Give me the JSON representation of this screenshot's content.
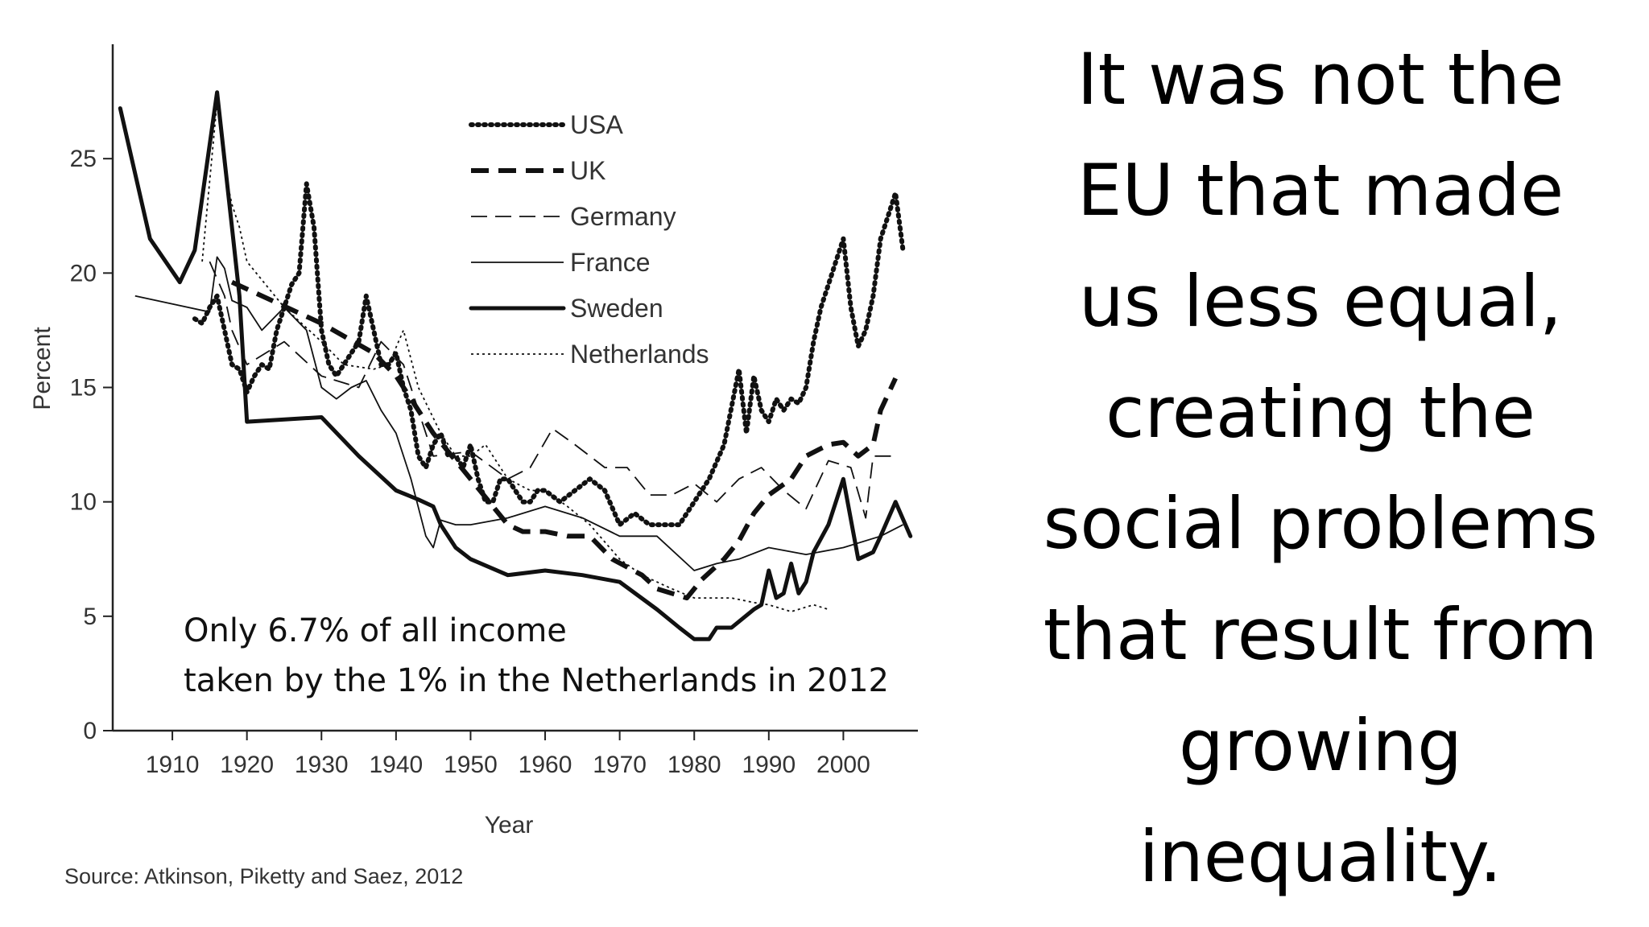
{
  "slide_text": [
    "It was not the",
    "EU that made",
    "us less equal,",
    "creating the",
    "social problems",
    "that result from",
    "growing",
    "inequality."
  ],
  "annotation": [
    "Only 6.7% of all income",
    "taken by the 1% in the Netherlands in 2012"
  ],
  "source": "Source: Atkinson, Piketty and Saez, 2012",
  "chart_data": {
    "type": "line",
    "xlabel": "Year",
    "ylabel": "Percent",
    "xlim": [
      1902,
      2010
    ],
    "ylim": [
      0,
      30
    ],
    "x_ticks": [
      1910,
      1920,
      1930,
      1940,
      1950,
      1960,
      1970,
      1980,
      1990,
      2000
    ],
    "y_ticks": [
      0,
      5,
      10,
      15,
      20,
      25
    ],
    "legend_position": "top-center",
    "series": [
      {
        "name": "USA",
        "style": "dotted-heavy",
        "points": [
          [
            1913,
            18
          ],
          [
            1914,
            17.8
          ],
          [
            1915,
            18.5
          ],
          [
            1916,
            19
          ],
          [
            1917,
            17.5
          ],
          [
            1918,
            16
          ],
          [
            1919,
            15.8
          ],
          [
            1920,
            14.8
          ],
          [
            1921,
            15.5
          ],
          [
            1922,
            16
          ],
          [
            1923,
            15.8
          ],
          [
            1924,
            17.5
          ],
          [
            1925,
            18.5
          ],
          [
            1926,
            19.5
          ],
          [
            1927,
            20
          ],
          [
            1928,
            23.9
          ],
          [
            1929,
            22
          ],
          [
            1930,
            17.5
          ],
          [
            1931,
            16
          ],
          [
            1932,
            15.5
          ],
          [
            1933,
            16
          ],
          [
            1934,
            16.5
          ],
          [
            1935,
            17
          ],
          [
            1936,
            19
          ],
          [
            1937,
            17.5
          ],
          [
            1938,
            16
          ],
          [
            1939,
            16
          ],
          [
            1940,
            16.5
          ],
          [
            1941,
            15
          ],
          [
            1942,
            14
          ],
          [
            1943,
            12
          ],
          [
            1944,
            11.5
          ],
          [
            1945,
            12.5
          ],
          [
            1946,
            13
          ],
          [
            1947,
            12
          ],
          [
            1948,
            12
          ],
          [
            1949,
            11.5
          ],
          [
            1950,
            12.5
          ],
          [
            1951,
            11
          ],
          [
            1952,
            10
          ],
          [
            1953,
            10
          ],
          [
            1954,
            11
          ],
          [
            1955,
            11
          ],
          [
            1956,
            10.5
          ],
          [
            1957,
            10
          ],
          [
            1958,
            10
          ],
          [
            1959,
            10.5
          ],
          [
            1960,
            10.5
          ],
          [
            1962,
            10
          ],
          [
            1964,
            10.5
          ],
          [
            1966,
            11
          ],
          [
            1968,
            10.5
          ],
          [
            1970,
            9
          ],
          [
            1972,
            9.5
          ],
          [
            1974,
            9
          ],
          [
            1976,
            9
          ],
          [
            1978,
            9
          ],
          [
            1980,
            10
          ],
          [
            1982,
            11
          ],
          [
            1984,
            12.5
          ],
          [
            1986,
            15.8
          ],
          [
            1987,
            13
          ],
          [
            1988,
            15.5
          ],
          [
            1989,
            14
          ],
          [
            1990,
            13.5
          ],
          [
            1991,
            14.5
          ],
          [
            1992,
            14
          ],
          [
            1993,
            14.5
          ],
          [
            1994,
            14.3
          ],
          [
            1995,
            15
          ],
          [
            1996,
            17
          ],
          [
            1997,
            18.5
          ],
          [
            1998,
            19.5
          ],
          [
            1999,
            20.5
          ],
          [
            2000,
            21.5
          ],
          [
            2001,
            18.5
          ],
          [
            2002,
            16.8
          ],
          [
            2003,
            17.5
          ],
          [
            2004,
            19
          ],
          [
            2005,
            21.5
          ],
          [
            2006,
            22.5
          ],
          [
            2007,
            23.5
          ],
          [
            2008,
            21
          ]
        ]
      },
      {
        "name": "UK",
        "style": "dashed-heavy",
        "points": [
          [
            1918,
            19.6
          ],
          [
            1920,
            19.3
          ],
          [
            1930,
            17.8
          ],
          [
            1937,
            16.5
          ],
          [
            1940,
            15.5
          ],
          [
            1945,
            13
          ],
          [
            1950,
            11
          ],
          [
            1955,
            9
          ],
          [
            1957,
            8.7
          ],
          [
            1960,
            8.7
          ],
          [
            1963,
            8.5
          ],
          [
            1966,
            8.5
          ],
          [
            1969,
            7.5
          ],
          [
            1973,
            6.8
          ],
          [
            1975,
            6.2
          ],
          [
            1979,
            5.8
          ],
          [
            1981,
            6.6
          ],
          [
            1984,
            7.5
          ],
          [
            1986,
            8.3
          ],
          [
            1988,
            9.5
          ],
          [
            1990,
            10.3
          ],
          [
            1993,
            11
          ],
          [
            1995,
            12
          ],
          [
            1998,
            12.5
          ],
          [
            2000,
            12.6
          ],
          [
            2002,
            12
          ],
          [
            2004,
            12.5
          ],
          [
            2005,
            14
          ],
          [
            2007,
            15.4
          ]
        ]
      },
      {
        "name": "Germany",
        "style": "dashed-light",
        "points": [
          [
            1915,
            20.5
          ],
          [
            1917,
            19
          ],
          [
            1918,
            17.5
          ],
          [
            1920,
            16
          ],
          [
            1925,
            17
          ],
          [
            1930,
            15.5
          ],
          [
            1935,
            15
          ],
          [
            1938,
            17
          ],
          [
            1941,
            16
          ],
          [
            1945,
            12
          ],
          [
            1950,
            12.2
          ],
          [
            1955,
            11
          ],
          [
            1958,
            11.5
          ],
          [
            1961,
            13.2
          ],
          [
            1964,
            12.5
          ],
          [
            1968,
            11.5
          ],
          [
            1971,
            11.5
          ],
          [
            1974,
            10.3
          ],
          [
            1977,
            10.3
          ],
          [
            1980,
            10.8
          ],
          [
            1983,
            10
          ],
          [
            1986,
            11
          ],
          [
            1989,
            11.5
          ],
          [
            1992,
            10.5
          ],
          [
            1995,
            9.7
          ],
          [
            1998,
            11.8
          ],
          [
            2001,
            11.5
          ],
          [
            2003,
            9.3
          ],
          [
            2004,
            12
          ],
          [
            2007,
            12
          ]
        ]
      },
      {
        "name": "France",
        "style": "solid-light",
        "points": [
          [
            1905,
            19
          ],
          [
            1915,
            18.3
          ],
          [
            1916,
            20.7
          ],
          [
            1917,
            20.2
          ],
          [
            1918,
            18.8
          ],
          [
            1920,
            18.5
          ],
          [
            1922,
            17.5
          ],
          [
            1925,
            18.5
          ],
          [
            1928,
            17.5
          ],
          [
            1930,
            15
          ],
          [
            1932,
            14.5
          ],
          [
            1934,
            15
          ],
          [
            1936,
            15.3
          ],
          [
            1938,
            14
          ],
          [
            1940,
            13
          ],
          [
            1942,
            11
          ],
          [
            1944,
            8.5
          ],
          [
            1945,
            8
          ],
          [
            1946,
            9.2
          ],
          [
            1948,
            9
          ],
          [
            1950,
            9
          ],
          [
            1955,
            9.3
          ],
          [
            1960,
            9.8
          ],
          [
            1965,
            9.3
          ],
          [
            1970,
            8.5
          ],
          [
            1975,
            8.5
          ],
          [
            1980,
            7
          ],
          [
            1983,
            7.3
          ],
          [
            1986,
            7.5
          ],
          [
            1990,
            8
          ],
          [
            1995,
            7.7
          ],
          [
            2000,
            8
          ],
          [
            2005,
            8.5
          ],
          [
            2008,
            9
          ]
        ]
      },
      {
        "name": "Sweden",
        "style": "solid-heavy",
        "points": [
          [
            1903,
            27.2
          ],
          [
            1907,
            21.5
          ],
          [
            1911,
            19.6
          ],
          [
            1913,
            21
          ],
          [
            1916,
            27.9
          ],
          [
            1918,
            22
          ],
          [
            1919,
            19
          ],
          [
            1920,
            13.5
          ],
          [
            1930,
            13.7
          ],
          [
            1935,
            12
          ],
          [
            1940,
            10.5
          ],
          [
            1943,
            10.1
          ],
          [
            1945,
            9.8
          ],
          [
            1946,
            9
          ],
          [
            1948,
            8
          ],
          [
            1950,
            7.5
          ],
          [
            1955,
            6.8
          ],
          [
            1960,
            7
          ],
          [
            1965,
            6.8
          ],
          [
            1970,
            6.5
          ],
          [
            1975,
            5.3
          ],
          [
            1978,
            4.5
          ],
          [
            1980,
            4
          ],
          [
            1982,
            4
          ],
          [
            1983,
            4.5
          ],
          [
            1985,
            4.5
          ],
          [
            1988,
            5.3
          ],
          [
            1989,
            5.5
          ],
          [
            1990,
            7
          ],
          [
            1991,
            5.8
          ],
          [
            1992,
            6
          ],
          [
            1993,
            7.3
          ],
          [
            1994,
            6
          ],
          [
            1995,
            6.5
          ],
          [
            1996,
            7.8
          ],
          [
            1998,
            9
          ],
          [
            2000,
            11
          ],
          [
            2002,
            7.5
          ],
          [
            2004,
            7.8
          ],
          [
            2005,
            8.5
          ],
          [
            2007,
            10
          ],
          [
            2009,
            8.5
          ]
        ]
      },
      {
        "name": "Netherlands",
        "style": "dotted-light",
        "points": [
          [
            1914,
            20.5
          ],
          [
            1916,
            27.5
          ],
          [
            1917,
            24.5
          ],
          [
            1918,
            23
          ],
          [
            1919,
            22
          ],
          [
            1920,
            20.5
          ],
          [
            1925,
            18.5
          ],
          [
            1930,
            17
          ],
          [
            1933,
            16
          ],
          [
            1937,
            15.8
          ],
          [
            1939,
            16
          ],
          [
            1941,
            17.5
          ],
          [
            1943,
            15
          ],
          [
            1946,
            13
          ],
          [
            1948,
            12
          ],
          [
            1950,
            12
          ],
          [
            1952,
            12.5
          ],
          [
            1955,
            11
          ],
          [
            1958,
            10.5
          ],
          [
            1960,
            10.5
          ],
          [
            1963,
            9.8
          ],
          [
            1966,
            9
          ],
          [
            1970,
            7.5
          ],
          [
            1973,
            6.8
          ],
          [
            1977,
            6.2
          ],
          [
            1980,
            5.8
          ],
          [
            1985,
            5.8
          ],
          [
            1988,
            5.6
          ],
          [
            1990,
            5.5
          ],
          [
            1993,
            5.2
          ],
          [
            1996,
            5.5
          ],
          [
            1998,
            5.3
          ]
        ]
      }
    ]
  }
}
